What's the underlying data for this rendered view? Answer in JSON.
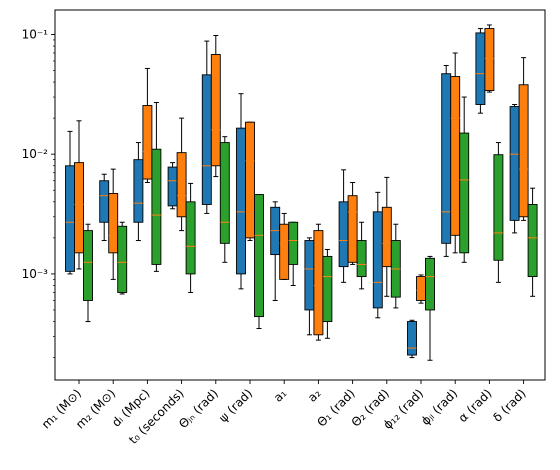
{
  "chart_data": {
    "type": "box",
    "yscale": "log",
    "ylim": [
      0.00013,
      0.16
    ],
    "yticks": [
      {
        "value": 0.001,
        "label": "10⁻³"
      },
      {
        "value": 0.01,
        "label": "10⁻²"
      },
      {
        "value": 0.1,
        "label": "10⁻¹"
      }
    ],
    "categories": [
      "m₁ (M⊙)",
      "m₂ (M⊙)",
      "dₗ (Mpc)",
      "t₀ (seconds)",
      "Θⱼₙ (rad)",
      "ψ (rad)",
      "a₁",
      "a₂",
      "Θ₁ (rad)",
      "Θ₂ (rad)",
      "ϕ₁₂ (rad)",
      "ϕⱼₗ (rad)",
      "α (rad)",
      "δ (rad)"
    ],
    "series": [
      {
        "color": "#1f77b4",
        "boxes": [
          {
            "wl": 0.001,
            "q1": 0.00105,
            "med": 0.0027,
            "q3": 0.008,
            "wh": 0.0155
          },
          {
            "wl": 0.0019,
            "q1": 0.0027,
            "med": 0.0045,
            "q3": 0.006,
            "wh": 0.0068
          },
          {
            "wl": 0.0019,
            "q1": 0.0027,
            "med": 0.0039,
            "q3": 0.009,
            "wh": 0.0125
          },
          {
            "wl": 0.0035,
            "q1": 0.0037,
            "med": 0.006,
            "q3": 0.0078,
            "wh": 0.0085
          },
          {
            "wl": 0.0032,
            "q1": 0.0038,
            "med": 0.008,
            "q3": 0.046,
            "wh": 0.088
          },
          {
            "wl": 0.00075,
            "q1": 0.001,
            "med": 0.0033,
            "q3": 0.0165,
            "wh": 0.032
          },
          {
            "wl": 0.0006,
            "q1": 0.00145,
            "med": 0.0023,
            "q3": 0.0036,
            "wh": 0.004
          },
          {
            "wl": 0.00031,
            "q1": 0.0005,
            "med": 0.0011,
            "q3": 0.0019,
            "wh": 0.002
          },
          {
            "wl": 0.00085,
            "q1": 0.00115,
            "med": 0.0019,
            "q3": 0.004,
            "wh": 0.0074
          },
          {
            "wl": 0.00043,
            "q1": 0.00052,
            "med": 0.00085,
            "q3": 0.0033,
            "wh": 0.0048
          },
          {
            "wl": 0.0002,
            "q1": 0.00021,
            "med": 0.00024,
            "q3": 0.0004,
            "wh": 0.00041
          },
          {
            "wl": 0.0014,
            "q1": 0.0018,
            "med": 0.0033,
            "q3": 0.047,
            "wh": 0.055
          },
          {
            "wl": 0.022,
            "q1": 0.026,
            "med": 0.047,
            "q3": 0.103,
            "wh": 0.112
          },
          {
            "wl": 0.0022,
            "q1": 0.0028,
            "med": 0.01,
            "q3": 0.025,
            "wh": 0.026
          }
        ]
      },
      {
        "color": "#ff7f0e",
        "boxes": [
          {
            "wl": 0.0011,
            "q1": 0.0015,
            "med": 0.0038,
            "q3": 0.0085,
            "wh": 0.019
          },
          {
            "wl": 0.0009,
            "q1": 0.0015,
            "med": 0.0021,
            "q3": 0.0047,
            "wh": 0.0075
          },
          {
            "wl": 0.0058,
            "q1": 0.0062,
            "med": 0.0105,
            "q3": 0.0255,
            "wh": 0.052
          },
          {
            "wl": 0.0023,
            "q1": 0.003,
            "med": 0.0045,
            "q3": 0.0103,
            "wh": 0.02
          },
          {
            "wl": 0.0065,
            "q1": 0.008,
            "med": 0.016,
            "q3": 0.068,
            "wh": 0.098
          },
          {
            "wl": 0.0019,
            "q1": 0.002,
            "med": 0.0088,
            "q3": 0.0185,
            "wh": 0.0185
          },
          {
            "wl": 0.0009,
            "q1": 0.0009,
            "med": 0.0018,
            "q3": 0.0026,
            "wh": 0.0032
          },
          {
            "wl": 0.00028,
            "q1": 0.00031,
            "med": 0.0008,
            "q3": 0.0023,
            "wh": 0.0026
          },
          {
            "wl": 0.0012,
            "q1": 0.00125,
            "med": 0.0033,
            "q3": 0.0045,
            "wh": 0.0058
          },
          {
            "wl": 0.00065,
            "q1": 0.00115,
            "med": 0.0018,
            "q3": 0.0036,
            "wh": 0.0064
          },
          {
            "wl": 0.00057,
            "q1": 0.0006,
            "med": 0.00073,
            "q3": 0.00095,
            "wh": 0.00098
          },
          {
            "wl": 0.0015,
            "q1": 0.0021,
            "med": 0.02,
            "q3": 0.0445,
            "wh": 0.07
          },
          {
            "wl": 0.033,
            "q1": 0.034,
            "med": 0.063,
            "q3": 0.112,
            "wh": 0.12
          },
          {
            "wl": 0.0028,
            "q1": 0.003,
            "med": 0.0075,
            "q3": 0.038,
            "wh": 0.064
          }
        ]
      },
      {
        "color": "#2ca02c",
        "boxes": [
          {
            "wl": 0.0004,
            "q1": 0.0006,
            "med": 0.00125,
            "q3": 0.0023,
            "wh": 0.0026
          },
          {
            "wl": 0.00068,
            "q1": 0.0007,
            "med": 0.00125,
            "q3": 0.0025,
            "wh": 0.0027
          },
          {
            "wl": 0.00105,
            "q1": 0.0012,
            "med": 0.0031,
            "q3": 0.011,
            "wh": 0.027
          },
          {
            "wl": 0.0007,
            "q1": 0.001,
            "med": 0.0017,
            "q3": 0.004,
            "wh": 0.0057
          },
          {
            "wl": 0.00125,
            "q1": 0.0018,
            "med": 0.0027,
            "q3": 0.0125,
            "wh": 0.014
          },
          {
            "wl": 0.00035,
            "q1": 0.00044,
            "med": 0.0021,
            "q3": 0.0046,
            "wh": 0.0046
          },
          {
            "wl": 0.0008,
            "q1": 0.0012,
            "med": 0.0019,
            "q3": 0.0027,
            "wh": 0.0027
          },
          {
            "wl": 0.00029,
            "q1": 0.0004,
            "med": 0.00095,
            "q3": 0.0014,
            "wh": 0.0016
          },
          {
            "wl": 0.00075,
            "q1": 0.00095,
            "med": 0.0012,
            "q3": 0.0019,
            "wh": 0.0027
          },
          {
            "wl": 0.00052,
            "q1": 0.00064,
            "med": 0.0011,
            "q3": 0.0019,
            "wh": 0.0026
          },
          {
            "wl": 0.00019,
            "q1": 0.0005,
            "med": 0.00095,
            "q3": 0.00135,
            "wh": 0.0014
          },
          {
            "wl": 0.00125,
            "q1": 0.0015,
            "med": 0.0061,
            "q3": 0.015,
            "wh": 0.03
          },
          {
            "wl": 0.00085,
            "q1": 0.0013,
            "med": 0.0022,
            "q3": 0.0099,
            "wh": 0.0125
          },
          {
            "wl": 0.00065,
            "q1": 0.00095,
            "med": 0.002,
            "q3": 0.0038,
            "wh": 0.0052
          }
        ]
      }
    ]
  }
}
